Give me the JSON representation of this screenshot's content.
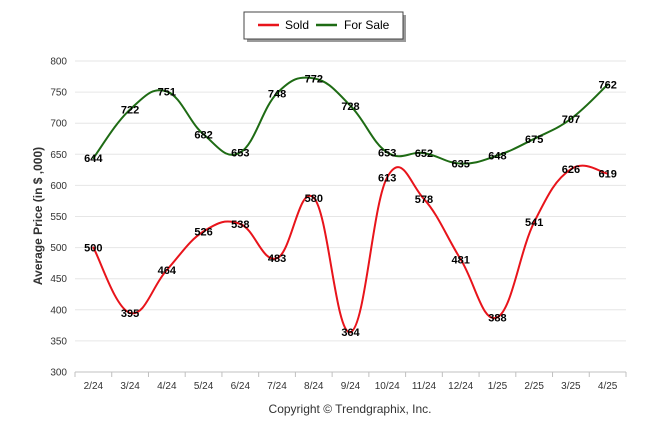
{
  "chart_data": {
    "type": "line",
    "categories": [
      "2/24",
      "3/24",
      "4/24",
      "5/24",
      "6/24",
      "7/24",
      "8/24",
      "9/24",
      "10/24",
      "11/24",
      "12/24",
      "1/25",
      "2/25",
      "3/25",
      "4/25"
    ],
    "series": [
      {
        "name": "Sold",
        "color": "#e8141b",
        "values": [
          500,
          395,
          464,
          526,
          538,
          483,
          580,
          364,
          613,
          578,
          481,
          388,
          541,
          626,
          619
        ]
      },
      {
        "name": "For Sale",
        "color": "#1e6b14",
        "values": [
          644,
          722,
          751,
          682,
          653,
          748,
          772,
          728,
          653,
          652,
          635,
          648,
          675,
          707,
          762
        ]
      }
    ],
    "title": "",
    "xlabel": "",
    "ylabel": "Average Price (in $ ,000)",
    "ylim": [
      300,
      800
    ],
    "yticks": [
      300,
      350,
      400,
      450,
      500,
      550,
      600,
      650,
      700,
      750,
      800
    ],
    "grid": true,
    "legend_position": "top-center",
    "footer": "Copyright © Trendgraphix, Inc."
  }
}
